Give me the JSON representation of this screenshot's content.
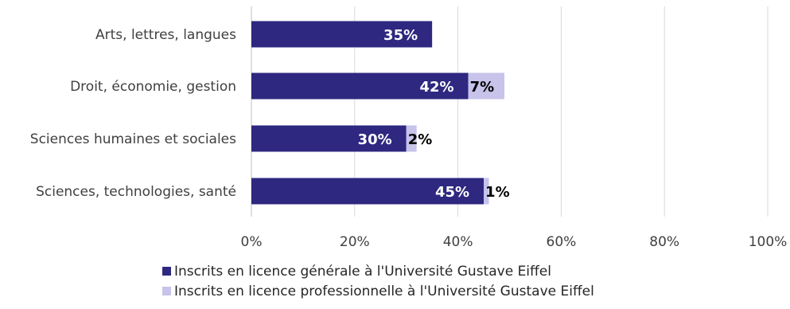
{
  "chart_data": {
    "type": "bar",
    "orientation": "horizontal",
    "stacked": true,
    "categories": [
      "Arts, lettres, langues",
      "Droit, économie, gestion",
      "Sciences humaines et sociales",
      "Sciences, technologies, santé"
    ],
    "series": [
      {
        "name": "Inscrits en licence générale à l'Université Gustave Eiffel",
        "color": "#2e2880",
        "values": [
          35,
          42,
          30,
          45
        ],
        "labels": [
          "35%",
          "42%",
          "30%",
          "45%"
        ],
        "label_color": "#ffffff"
      },
      {
        "name": "Inscrits en licence professionnelle à l'Université Gustave Eiffel",
        "color": "#c7c3ea",
        "values": [
          0,
          7,
          2,
          1
        ],
        "labels": [
          "",
          "7%",
          "2%",
          "1%"
        ],
        "label_color": "#000000"
      }
    ],
    "xlim": [
      0,
      100
    ],
    "x_ticks": [
      "0%",
      "20%",
      "40%",
      "60%",
      "80%",
      "100%"
    ],
    "grid": true,
    "legend_position": "bottom"
  }
}
